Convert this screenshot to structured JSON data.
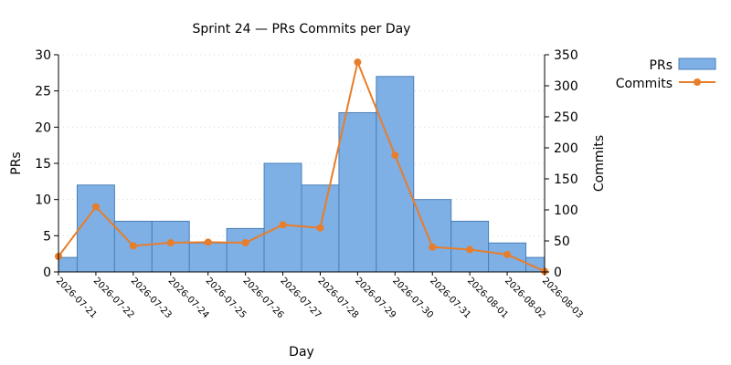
{
  "chart_data": {
    "type": "bar",
    "title": "Sprint 24 — PRs  Commits per Day",
    "xlabel": "Day",
    "ylabel": "PRs",
    "y2label": "Commits",
    "ylim": [
      0,
      30
    ],
    "y2lim": [
      0,
      350
    ],
    "yticks": [
      0,
      5,
      10,
      15,
      20,
      25,
      30
    ],
    "y2ticks": [
      0,
      50,
      100,
      150,
      200,
      250,
      300,
      350
    ],
    "grid": true,
    "legend_position": "top-right",
    "categories": [
      "2026-07-21",
      "2026-07-22",
      "2026-07-23",
      "2026-07-24",
      "2026-07-25",
      "2026-07-26",
      "2026-07-27",
      "2026-07-28",
      "2026-07-29",
      "2026-07-30",
      "2026-07-31",
      "2026-08-01",
      "2026-08-02",
      "2026-08-03"
    ],
    "series": [
      {
        "name": "PRs",
        "type": "bar",
        "axis": "left",
        "color": "#7eb0e6",
        "edge_color": "#4a7fb5",
        "values": [
          2,
          12,
          7,
          7,
          4,
          6,
          15,
          12,
          22,
          27,
          10,
          7,
          4,
          2
        ]
      },
      {
        "name": "Commits",
        "type": "line",
        "axis": "right",
        "color": "#e87d2a",
        "values": [
          25,
          105,
          42,
          47,
          48,
          47,
          76,
          71,
          338,
          188,
          40,
          36,
          28,
          1
        ]
      }
    ]
  }
}
